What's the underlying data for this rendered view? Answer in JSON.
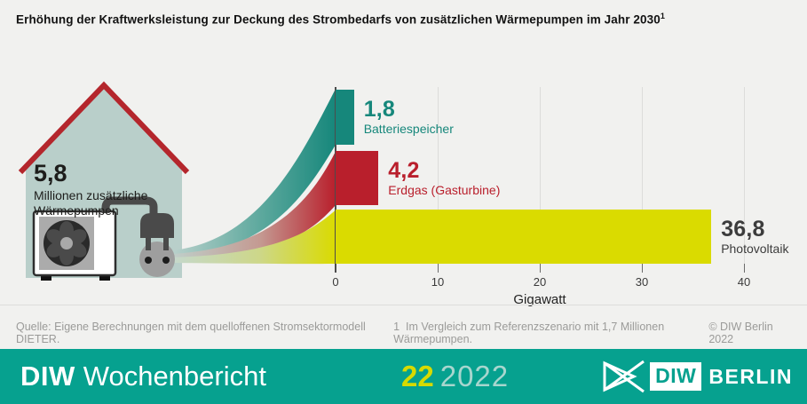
{
  "title": "Erhöhung der Kraftwerksleistung zur Deckung des Strombedarfs von zusätzlichen Wärmepumpen im Jahr 2030",
  "title_footnote_marker": "1",
  "house": {
    "value": "5,8",
    "label_line1": "Millionen zusätzliche",
    "label_line2": "Wärmepumpen"
  },
  "chart_data": {
    "type": "bar",
    "orientation": "horizontal",
    "title": "Erhöhung der Kraftwerksleistung zur Deckung des Strombedarfs von zusätzlichen Wärmepumpen im Jahr 2030",
    "xlabel": "Gigawatt",
    "xlim": [
      0,
      40
    ],
    "ticks": [
      0,
      10,
      20,
      30,
      40
    ],
    "grid": true,
    "series": [
      {
        "name": "Batteriespeicher",
        "value": 1.8,
        "value_label": "1,8",
        "bar_color": "#16877b",
        "label_color": "#16877b"
      },
      {
        "name": "Erdgas (Gasturbine)",
        "value": 4.2,
        "value_label": "4,2",
        "bar_color": "#b91f2c",
        "label_color": "#b91f2c"
      },
      {
        "name": "Photovoltaik",
        "value": 36.8,
        "value_label": "36,8",
        "bar_color": "#dadb00",
        "label_color": "#3c3c3c"
      }
    ],
    "annotation": {
      "value": "5,8",
      "text": "Millionen zusätzliche Wärmepumpen"
    }
  },
  "footer": {
    "source": "Quelle: Eigene Berechnungen mit dem quelloffenen Stromsektormodell DIETER.",
    "note_marker": "1",
    "note": "Im Vergleich zum Referenzszenario mit 1,7 Millionen Wärmepumpen.",
    "copyright": "© DIW Berlin 2022"
  },
  "banner": {
    "brand_bold": "DIW",
    "brand_regular": "Wochenbericht",
    "issue_number": "22",
    "issue_year": "2022",
    "logo_acronym": "DIW",
    "logo_city": "BERLIN"
  },
  "colors": {
    "background": "#f1f1ef",
    "banner_background": "#06a18f",
    "issue_number": "#d7da00",
    "issue_year": "#a7d6ce",
    "house_body": "#b9cfca",
    "roof": "#b4262c",
    "bar_teal": "#16877b",
    "bar_red": "#b91f2c",
    "bar_yellow": "#dadb00"
  }
}
